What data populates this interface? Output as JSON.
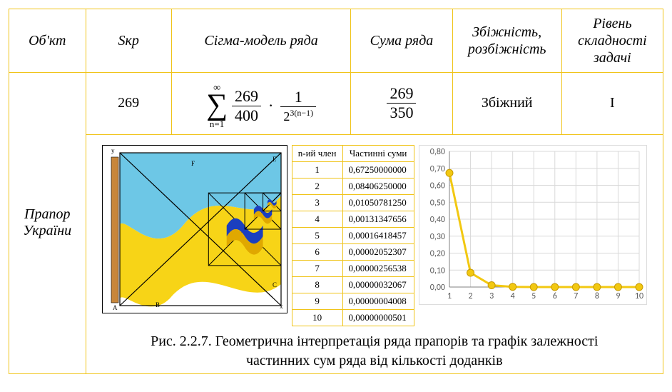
{
  "header": {
    "col1": "Об'кт",
    "col2": "Sкр",
    "col3": "Сігма-модель ряда",
    "col4": "Сума ряда",
    "col5": "Збіжність, розбіжність",
    "col6": "Рівень складності задачі"
  },
  "row": {
    "object": "Прапор України",
    "skr": "269",
    "sigma": {
      "inf": "∞",
      "idx": "n=1",
      "frac1_num": "269",
      "frac1_den": "400",
      "frac2_num": "1",
      "frac2_den_base": "2",
      "frac2_den_exp": "3(n−1)"
    },
    "sum": {
      "num": "269",
      "den": "350"
    },
    "conv": "Збіжний",
    "level": "I"
  },
  "sums_table": {
    "h1": "n-ий член",
    "h2": "Частинні суми",
    "rows": [
      [
        "1",
        "0,67250000000"
      ],
      [
        "2",
        "0,08406250000"
      ],
      [
        "3",
        "0,01050781250"
      ],
      [
        "4",
        "0,00131347656"
      ],
      [
        "5",
        "0,00016418457"
      ],
      [
        "6",
        "0,00002052307"
      ],
      [
        "7",
        "0,00000256538"
      ],
      [
        "8",
        "0,00000032067"
      ],
      [
        "9",
        "0,00000004008"
      ],
      [
        "10",
        "0,00000000501"
      ]
    ]
  },
  "chart": {
    "ylim": [
      0.0,
      0.8
    ],
    "ystep": 0.1,
    "xvals": [
      1,
      2,
      3,
      4,
      5,
      6,
      7,
      8,
      9,
      10
    ],
    "yvals": [
      0.6725,
      0.0841,
      0.0105,
      0.00131,
      0.000164,
      2.05e-05,
      2.57e-06,
      3.21e-07,
      4.01e-08,
      5.01e-09
    ],
    "line_color": "#f2c811",
    "marker_fill": "#f2c811",
    "marker_stroke": "#c79a00",
    "grid_color": "#d9d9d9",
    "axis_color": "#808080",
    "tick_font": 12,
    "background": "#ffffff"
  },
  "flag": {
    "sky": "#6dc7e6",
    "yellow": "#f7d417",
    "pole": "#c8863a",
    "line": "#000000",
    "deep_blue": "#1b3fbf",
    "deep_yellow": "#e0a800"
  },
  "caption": {
    "line1": "Рис. 2.2.7. Геометрична інтерпретація ряда прапорів та графік залежності",
    "line2": "частинних сум ряда від кількості доданків"
  }
}
